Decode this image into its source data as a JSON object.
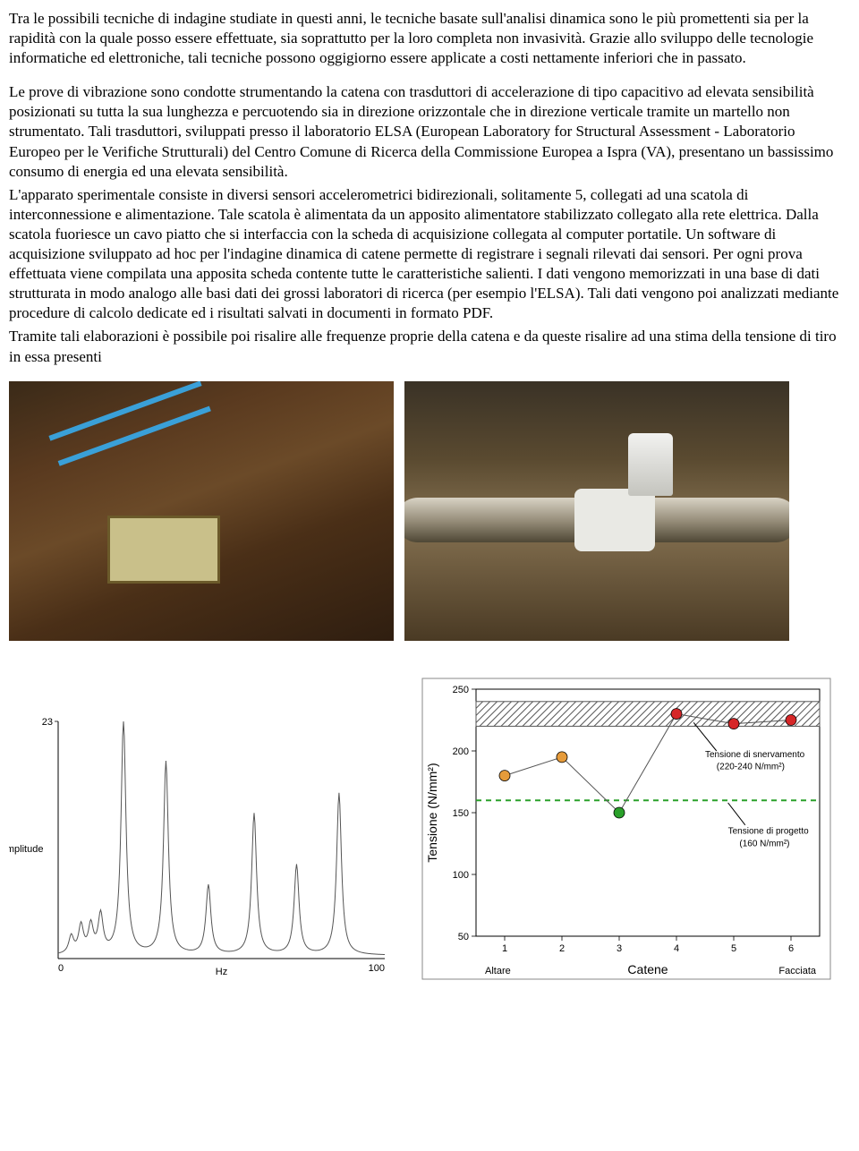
{
  "paragraphs": {
    "p1": "Tra le possibili tecniche di indagine studiate in questi anni, le tecniche basate sull'analisi dinamica sono le più promettenti sia per la rapidità con la quale posso essere effettuate, sia soprattutto per la loro completa non invasività. Grazie allo sviluppo delle tecnologie informatiche ed elettroniche, tali tecniche possono oggigiorno essere applicate a costi nettamente inferiori che in passato.",
    "p2": "Le prove di vibrazione sono condotte strumentando la catena con trasduttori di accelerazione di tipo capacitivo ad elevata sensibilità posizionati su tutta la sua lunghezza e percuotendo sia in direzione orizzontale che in direzione verticale tramite un martello non strumentato. Tali trasduttori, sviluppati presso il laboratorio ELSA (European Laboratory for Structural Assessment - Laboratorio Europeo per le Verifiche Strutturali) del Centro Comune di Ricerca della Commissione Europea a Ispra (VA), presentano un bassissimo consumo di energia ed una elevata sensibilità.",
    "p3": "L'apparato sperimentale consiste in diversi sensori accelerometrici bidirezionali, solitamente 5, collegati ad una scatola di interconnessione e alimentazione. Tale scatola è alimentata da un apposito alimentatore stabilizzato collegato alla rete elettrica. Dalla scatola fuoriesce un cavo piatto che si interfaccia con la scheda di acquisizione collegata al computer portatile. Un software di acquisizione sviluppato ad hoc per l'indagine dinamica di catene permette di registrare i segnali rilevati dai sensori. Per ogni prova effettuata viene compilata una apposita scheda contente tutte le caratteristiche salienti. I dati vengono memorizzati in una base di dati strutturata in modo analogo alle basi dati dei grossi laboratori di ricerca (per esempio l'ELSA). Tali dati vengono poi analizzati mediante procedure di calcolo dedicate ed i risultati salvati in documenti in formato PDF.",
    "p4": "Tramite tali elaborazioni è possibile poi risalire alle frequenze proprie della catena e da queste risalire ad una stima della tensione di tiro in essa presenti"
  },
  "spectrum": {
    "type": "line",
    "xlabel": "Hz",
    "ylabel": "Amplitude",
    "xlim": [
      0,
      100
    ],
    "ylim": [
      0,
      23
    ],
    "ymax_label": "23",
    "xticks": [
      0,
      100
    ],
    "xtick_labels": [
      "0",
      "100"
    ],
    "peaks_x": [
      4,
      7,
      10,
      13,
      20,
      33,
      46,
      60,
      73,
      86
    ],
    "peaks_y": [
      2,
      3,
      3,
      4,
      23,
      19,
      7,
      14,
      9,
      16
    ],
    "peak_halfwidth": 0.9,
    "baseline": 0.3,
    "line_color": "#555555",
    "axis_color": "#000000",
    "background": "#ffffff"
  },
  "tension": {
    "type": "scatter",
    "ylabel": "Tensione (N/mm²)",
    "xlabel": "Catene",
    "left_sub": "Altare",
    "right_sub": "Facciata",
    "ylim": [
      50,
      250
    ],
    "yticks": [
      50,
      100,
      150,
      200,
      250
    ],
    "xticks": [
      1,
      2,
      3,
      4,
      5,
      6
    ],
    "annotations": {
      "snerv": "Tensione di snervamento\n(220-240 N/mm²)",
      "progetto": "Tensione di progetto\n(160 N/mm²)"
    },
    "yield_band": [
      220,
      240
    ],
    "design_line": 160,
    "design_color": "#2aa02a",
    "band_border": "#555555",
    "points": [
      {
        "x": 1,
        "y": 180,
        "color": "#e69b3a"
      },
      {
        "x": 2,
        "y": 195,
        "color": "#e69b3a"
      },
      {
        "x": 3,
        "y": 150,
        "color": "#2aa02a"
      },
      {
        "x": 4,
        "y": 230,
        "color": "#d62728"
      },
      {
        "x": 5,
        "y": 222,
        "color": "#d62728"
      },
      {
        "x": 6,
        "y": 225,
        "color": "#d62728"
      }
    ],
    "line_color": "#555555",
    "marker_radius": 6,
    "background": "#ffffff",
    "border_color": "#888888"
  }
}
